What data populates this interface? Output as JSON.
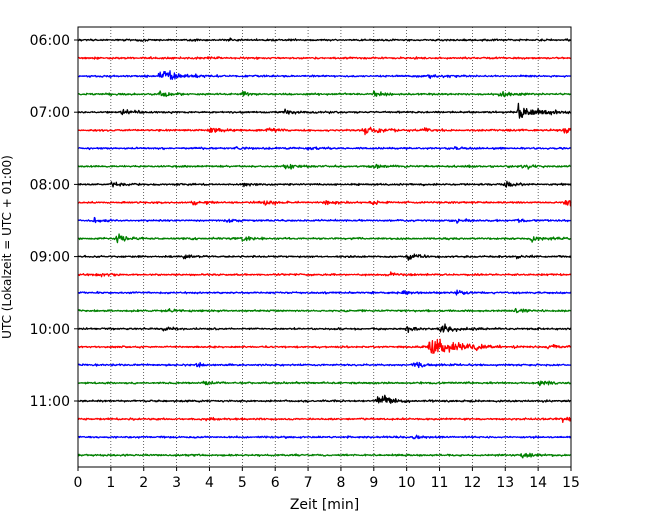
{
  "chart_data": {
    "type": "line",
    "title": "",
    "xlabel": "Zeit  [min]",
    "ylabel": "UTC (Lokalzeit = UTC + 01:00)",
    "xlim": [
      0,
      15
    ],
    "x_ticks": [
      "0",
      "1",
      "2",
      "3",
      "4",
      "5",
      "6",
      "7",
      "8",
      "9",
      "10",
      "11",
      "12",
      "13",
      "14",
      "15"
    ],
    "y_ticks": [
      "06:00",
      "07:00",
      "08:00",
      "09:00",
      "10:00",
      "11:00"
    ],
    "grid": "vertical dotted",
    "row_minutes": 15,
    "row_colors": [
      "#000000",
      "#ff0000",
      "#0000ff",
      "#008000"
    ],
    "rows": [
      {
        "start": "06:00",
        "events": [
          [
            4.5,
            0.4
          ],
          [
            1.8,
            0.3
          ]
        ]
      },
      {
        "start": "06:15",
        "events": [
          [
            4.0,
            0.3
          ]
        ]
      },
      {
        "start": "06:30",
        "events": [
          [
            2.5,
            1.4
          ],
          [
            10.7,
            0.5
          ],
          [
            11.0,
            0.3
          ]
        ]
      },
      {
        "start": "06:45",
        "events": [
          [
            2.5,
            0.6
          ],
          [
            5.0,
            0.5
          ],
          [
            9.0,
            0.7
          ],
          [
            12.8,
            0.8
          ]
        ]
      },
      {
        "start": "07:00",
        "events": [
          [
            1.3,
            0.6
          ],
          [
            6.3,
            0.5
          ],
          [
            13.4,
            1.8
          ]
        ]
      },
      {
        "start": "07:15",
        "events": [
          [
            4.0,
            0.6
          ],
          [
            5.8,
            0.6
          ],
          [
            8.7,
            1.2
          ],
          [
            10.5,
            0.5
          ],
          [
            14.8,
            0.6
          ]
        ]
      },
      {
        "start": "07:30",
        "events": [
          [
            4.8,
            0.4
          ],
          [
            7.0,
            0.4
          ],
          [
            11.5,
            0.4
          ]
        ]
      },
      {
        "start": "07:45",
        "events": [
          [
            6.3,
            0.8
          ],
          [
            9.0,
            0.5
          ],
          [
            13.5,
            0.6
          ]
        ]
      },
      {
        "start": "08:00",
        "events": [
          [
            1.0,
            0.6
          ],
          [
            5.0,
            0.4
          ],
          [
            13.0,
            0.7
          ]
        ]
      },
      {
        "start": "08:15",
        "events": [
          [
            3.5,
            0.6
          ],
          [
            5.7,
            0.6
          ],
          [
            7.5,
            0.6
          ],
          [
            8.9,
            0.5
          ],
          [
            14.8,
            0.7
          ]
        ]
      },
      {
        "start": "08:30",
        "events": [
          [
            0.5,
            0.6
          ],
          [
            4.5,
            0.5
          ],
          [
            11.5,
            0.4
          ],
          [
            13.3,
            0.4
          ]
        ]
      },
      {
        "start": "08:45",
        "events": [
          [
            1.2,
            0.9
          ],
          [
            5.0,
            0.5
          ],
          [
            13.8,
            0.7
          ]
        ]
      },
      {
        "start": "09:00",
        "events": [
          [
            3.2,
            0.6
          ],
          [
            10.0,
            0.7
          ],
          [
            13.3,
            0.4
          ]
        ]
      },
      {
        "start": "09:15",
        "events": [
          [
            0.6,
            0.4
          ],
          [
            9.4,
            0.5
          ]
        ]
      },
      {
        "start": "09:30",
        "events": [
          [
            9.8,
            0.5
          ],
          [
            11.5,
            0.6
          ]
        ]
      },
      {
        "start": "09:45",
        "events": [
          [
            2.7,
            0.4
          ],
          [
            13.3,
            0.6
          ]
        ]
      },
      {
        "start": "10:00",
        "events": [
          [
            2.6,
            0.5
          ],
          [
            10.0,
            0.6
          ],
          [
            11.0,
            1.1
          ]
        ]
      },
      {
        "start": "10:15",
        "events": [
          [
            10.7,
            2.4
          ],
          [
            12.0,
            0.5
          ],
          [
            14.3,
            0.5
          ]
        ]
      },
      {
        "start": "10:30",
        "events": [
          [
            3.6,
            0.4
          ],
          [
            10.2,
            0.6
          ]
        ]
      },
      {
        "start": "10:45",
        "events": [
          [
            3.8,
            0.5
          ],
          [
            14.0,
            0.6
          ]
        ]
      },
      {
        "start": "11:00",
        "events": [
          [
            9.1,
            1.0
          ],
          [
            9.3,
            0.5
          ]
        ]
      },
      {
        "start": "11:15",
        "events": [
          [
            14.7,
            0.6
          ],
          [
            3.9,
            0.3
          ]
        ]
      },
      {
        "start": "11:30",
        "events": [
          [
            10.2,
            0.4
          ]
        ]
      },
      {
        "start": "11:45",
        "events": [
          [
            13.5,
            0.5
          ]
        ]
      }
    ]
  }
}
